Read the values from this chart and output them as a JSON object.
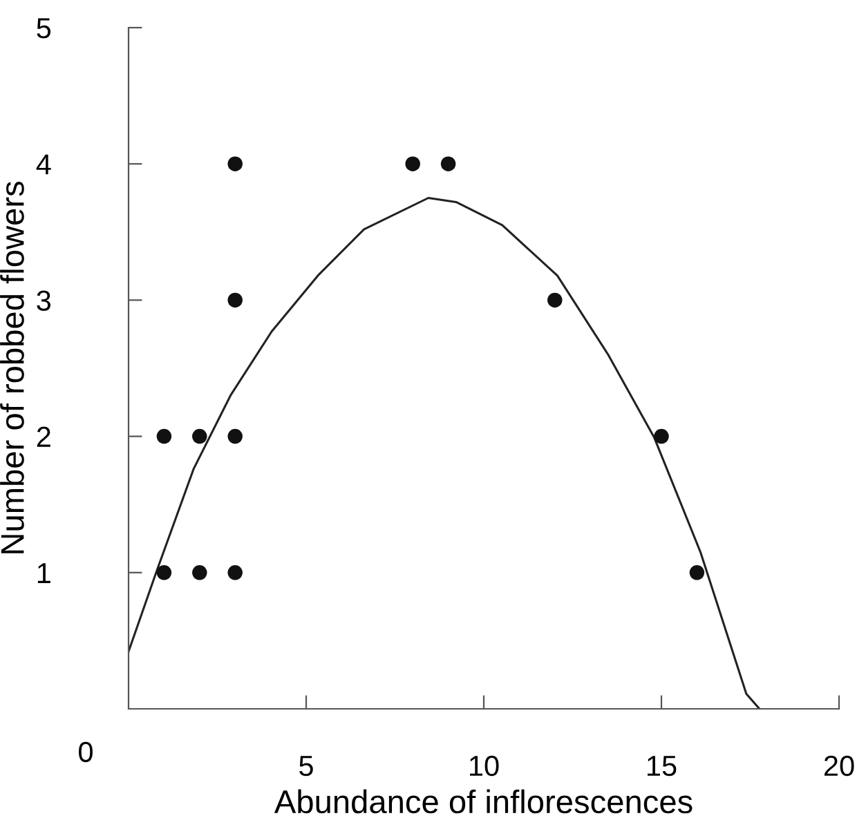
{
  "chart_data": {
    "type": "scatter",
    "xlabel": "Abundance of inflorescences",
    "ylabel": "Number of robbed flowers",
    "xlim": [
      0,
      20
    ],
    "ylim": [
      0,
      5
    ],
    "xticks": [
      5,
      10,
      15,
      20
    ],
    "yticks": [
      1,
      2,
      3,
      4,
      5
    ],
    "annotations": [
      "0"
    ],
    "grid": false,
    "legend": false,
    "series": [
      {
        "color": "#111111",
        "marker": "circle",
        "x": [
          1,
          2,
          3,
          1,
          2,
          3,
          3,
          3,
          8,
          9,
          12,
          15,
          16
        ],
        "values": [
          1,
          1,
          1,
          2,
          2,
          2,
          3,
          4,
          4,
          4,
          3,
          2,
          1
        ]
      },
      {
        "type": "line",
        "color": "#222222",
        "marker": "none",
        "line_style": "solid",
        "x": [
          0,
          0.79,
          1.83,
          2.87,
          4.03,
          5.33,
          6.63,
          8.44,
          9.22,
          10.52,
          12.07,
          13.5,
          14.8,
          16.1,
          17.39,
          17.76
        ],
        "values": [
          0.42,
          1.01,
          1.76,
          2.3,
          2.77,
          3.18,
          3.52,
          3.75,
          3.72,
          3.55,
          3.18,
          2.6,
          1.99,
          1.15,
          0.11,
          0
        ]
      }
    ]
  }
}
